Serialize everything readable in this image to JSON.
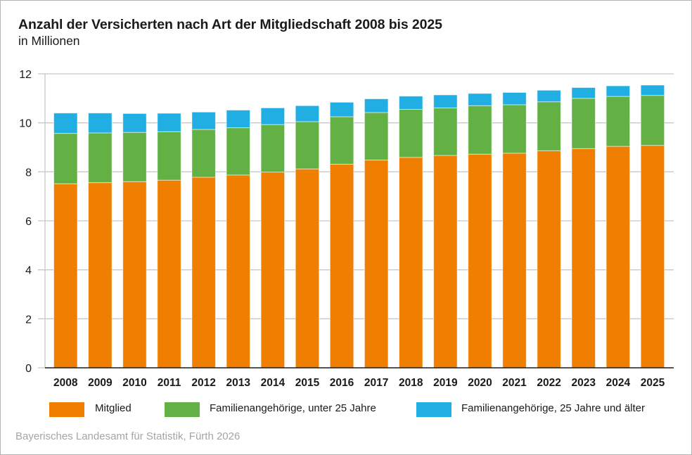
{
  "title": "Anzahl der Versicherten nach Art der Mitgliedschaft 2008 bis 2025",
  "subtitle": "in Millionen",
  "source": "Bayerisches Landesamt für Statistik, Fürth 2026",
  "colors": {
    "mitglied": "#F07E00",
    "familie_unter_25": "#63B145",
    "familie_25_plus": "#21AFE3",
    "gridline": "#c8c8c8",
    "axis": "#1a1a1a"
  },
  "chart_data": {
    "type": "bar",
    "stacked": true,
    "title": "Anzahl der Versicherten nach Art der Mitgliedschaft 2008 bis 2025",
    "subtitle": "in Millionen",
    "xlabel": "",
    "ylabel": "",
    "ylim": [
      0,
      12
    ],
    "yticks": [
      0,
      2,
      4,
      6,
      8,
      10,
      12
    ],
    "grid": true,
    "legend_position": "bottom",
    "categories": [
      "2008",
      "2009",
      "2010",
      "2011",
      "2012",
      "2013",
      "2014",
      "2015",
      "2016",
      "2017",
      "2018",
      "2019",
      "2020",
      "2021",
      "2022",
      "2023",
      "2024",
      "2025"
    ],
    "series": [
      {
        "name": "Mitglied",
        "color": "#F07E00",
        "values": [
          7.51,
          7.56,
          7.6,
          7.66,
          7.78,
          7.87,
          7.99,
          8.12,
          8.31,
          8.48,
          8.59,
          8.67,
          8.72,
          8.76,
          8.86,
          8.95,
          9.04,
          9.08
        ]
      },
      {
        "name": "Familienangehörige, unter 25 Jahre",
        "color": "#63B145",
        "values": [
          2.06,
          2.03,
          2.01,
          1.98,
          1.95,
          1.93,
          1.94,
          1.93,
          1.94,
          1.94,
          1.96,
          1.94,
          1.98,
          1.98,
          2.0,
          2.05,
          2.04,
          2.04
        ]
      },
      {
        "name": "Familienangehörige, 25 Jahre und älter",
        "color": "#21AFE3",
        "values": [
          0.83,
          0.81,
          0.77,
          0.75,
          0.71,
          0.72,
          0.68,
          0.65,
          0.59,
          0.56,
          0.54,
          0.53,
          0.5,
          0.5,
          0.47,
          0.44,
          0.43,
          0.42
        ]
      }
    ]
  },
  "legend": [
    {
      "label": "Mitglied",
      "color": "#F07E00"
    },
    {
      "label": "Familienangehörige, unter 25 Jahre",
      "color": "#63B145"
    },
    {
      "label": "Familienangehörige, 25 Jahre und älter",
      "color": "#21AFE3"
    }
  ]
}
